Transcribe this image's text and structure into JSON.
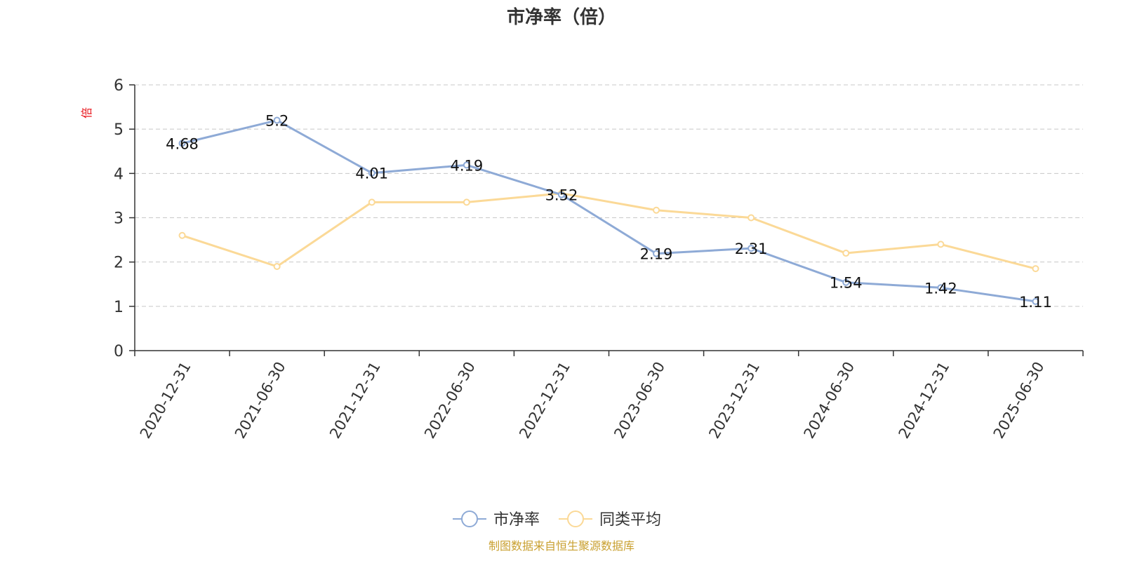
{
  "chart_data": {
    "type": "line",
    "title": "市净率（倍）",
    "ylabel": "倍",
    "ylim": [
      0,
      6
    ],
    "yticks": [
      0,
      1,
      2,
      3,
      4,
      5,
      6
    ],
    "grid": true,
    "legend_position": "bottom",
    "categories": [
      "2020-12-31",
      "2021-06-30",
      "2021-12-31",
      "2022-06-30",
      "2022-12-31",
      "2023-06-30",
      "2023-12-31",
      "2024-06-30",
      "2024-12-31",
      "2025-06-30"
    ],
    "series": [
      {
        "name": "市净率",
        "color": "#8eaad6",
        "show_labels": true,
        "values": [
          4.68,
          5.2,
          4.01,
          4.19,
          3.52,
          2.19,
          2.31,
          1.54,
          1.42,
          1.11
        ]
      },
      {
        "name": "同类平均",
        "color": "#fbd997",
        "show_labels": false,
        "values": [
          2.6,
          1.9,
          3.35,
          3.35,
          3.55,
          3.17,
          3.0,
          2.2,
          2.4,
          1.85
        ]
      }
    ]
  },
  "source_note": "制图数据来自恒生聚源数据库"
}
